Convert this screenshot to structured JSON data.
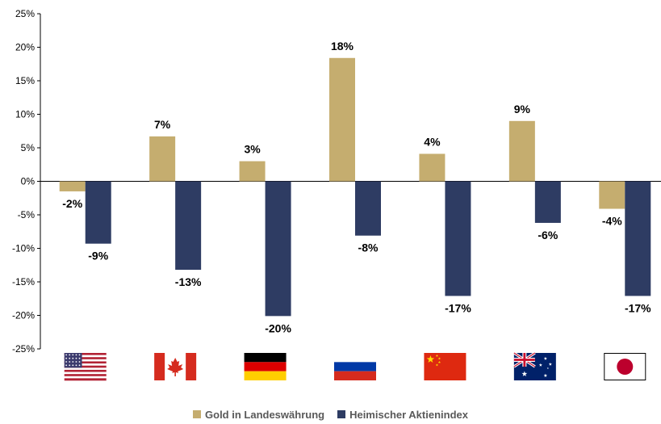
{
  "chart_data": {
    "type": "bar",
    "categories": [
      "USA",
      "Kanada",
      "Deutschland",
      "Russland",
      "China",
      "Australien",
      "Japan"
    ],
    "flag_icons": [
      "flag-usa-icon",
      "flag-canada-icon",
      "flag-germany-icon",
      "flag-russia-icon",
      "flag-china-icon",
      "flag-australia-icon",
      "flag-japan-icon"
    ],
    "series": [
      {
        "name": "Gold in Landeswährung",
        "color": "#c5ad6f",
        "values": [
          -1.5,
          6.7,
          3.0,
          18.4,
          4.1,
          9.0,
          -4.1
        ],
        "labels": [
          "-2%",
          "7%",
          "3%",
          "18%",
          "4%",
          "9%",
          "-4%"
        ]
      },
      {
        "name": "Heimischer Aktienindex",
        "color": "#2e3c63",
        "values": [
          -9.3,
          -13.2,
          -20.1,
          -8.1,
          -17.1,
          -6.2,
          -17.1
        ],
        "labels": [
          "-9%",
          "-13%",
          "-20%",
          "-8%",
          "-17%",
          "-6%",
          "-17%"
        ]
      }
    ],
    "ylim": [
      -25,
      25
    ],
    "yticks": [
      "25%",
      "20%",
      "15%",
      "10%",
      "5%",
      "0%",
      "-5%",
      "-10%",
      "-15%",
      "-20%",
      "-25%"
    ],
    "grid": false,
    "legend_position": "bottom"
  }
}
